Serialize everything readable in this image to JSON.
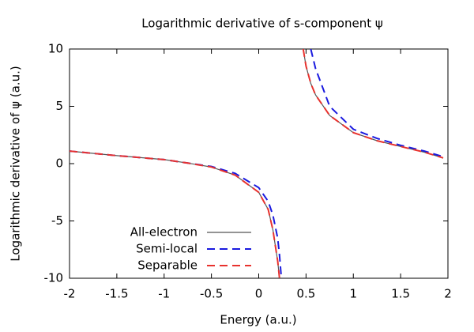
{
  "chart_data": {
    "type": "line",
    "title": "Logarithmic derivative of s-component ψ",
    "x_label": "Energy (a.u.)",
    "y_label": "Logarithmic derivative of ψ (a.u.)",
    "x": [
      -2,
      -1.5,
      -1,
      -0.75,
      -0.5,
      -0.25,
      0,
      0.1,
      0.15,
      0.2,
      0.22,
      0.24,
      0.47,
      0.5,
      0.55,
      0.6,
      0.75,
      1,
      1.25,
      1.5,
      1.75,
      1.95
    ],
    "series": [
      {
        "name": "All-electron",
        "color": "#555555",
        "dash": "solid",
        "values": [
          1.1,
          0.7,
          0.35,
          0.05,
          -0.3,
          -1.0,
          -2.5,
          -4,
          -5.8,
          -8.5,
          -10,
          null,
          10,
          8.5,
          7.0,
          6.0,
          4.2,
          2.7,
          2.0,
          1.5,
          1.0,
          0.5
        ]
      },
      {
        "name": "Semi-local",
        "color": "#1a1adf",
        "dash": "dashed",
        "values": [
          1.1,
          0.7,
          0.35,
          0.05,
          -0.25,
          -0.85,
          -2.1,
          -3.3,
          -4.5,
          -6.5,
          -8,
          -10,
          null,
          null,
          10,
          8.3,
          5.0,
          3.0,
          2.2,
          1.6,
          1.1,
          0.6
        ]
      },
      {
        "name": "Separable",
        "color": "#e8322e",
        "dash": "dashed",
        "values": [
          1.1,
          0.7,
          0.35,
          0.05,
          -0.3,
          -1.0,
          -2.5,
          -4,
          -5.8,
          -8.5,
          -10,
          null,
          10,
          8.5,
          7.0,
          6.0,
          4.2,
          2.7,
          2.0,
          1.5,
          1.0,
          0.5
        ]
      }
    ],
    "xlim": [
      -2,
      2
    ],
    "xticks": [
      -2,
      -1.5,
      -1,
      -0.5,
      0,
      0.5,
      1,
      1.5,
      2
    ],
    "ylim": [
      -10,
      10
    ],
    "yticks": [
      -10,
      -5,
      0,
      5,
      10
    ],
    "grid": false,
    "legend": "bottom-left"
  }
}
